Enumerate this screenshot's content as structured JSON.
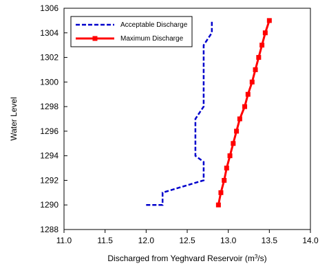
{
  "chart_data": {
    "type": "line",
    "title": "",
    "xlabel_main": "Discharged from Yeghvard Reservoir (m",
    "xlabel_sup": "3",
    "xlabel_tail": "/s)",
    "ylabel": "Water Level",
    "xlim": [
      11.0,
      14.0
    ],
    "ylim": [
      1288,
      1306
    ],
    "x_ticks": [
      "11.0",
      "11.5",
      "12.0",
      "12.5",
      "13.0",
      "13.5",
      "14.0"
    ],
    "y_ticks": [
      "1288",
      "1290",
      "1292",
      "1294",
      "1296",
      "1298",
      "1300",
      "1302",
      "1304",
      "1306"
    ],
    "grid": false,
    "legend_position": "top-left",
    "series": [
      {
        "name": "Acceptable Discharge",
        "color": "#0000CC",
        "style": "dashed",
        "points": [
          {
            "x": 12.0,
            "y": 1290.0
          },
          {
            "x": 12.2,
            "y": 1290.0
          },
          {
            "x": 12.2,
            "y": 1291.0
          },
          {
            "x": 12.7,
            "y": 1292.0
          },
          {
            "x": 12.7,
            "y": 1293.5
          },
          {
            "x": 12.6,
            "y": 1294.0
          },
          {
            "x": 12.6,
            "y": 1297.0
          },
          {
            "x": 12.7,
            "y": 1298.0
          },
          {
            "x": 12.7,
            "y": 1303.0
          },
          {
            "x": 12.8,
            "y": 1304.0
          },
          {
            "x": 12.8,
            "y": 1305.0
          }
        ]
      },
      {
        "name": "Maximum Discharge",
        "color": "#FF0000",
        "style": "solid-square",
        "points": [
          {
            "x": 12.88,
            "y": 1290.0
          },
          {
            "x": 12.91,
            "y": 1291.0
          },
          {
            "x": 12.95,
            "y": 1292.0
          },
          {
            "x": 12.98,
            "y": 1293.0
          },
          {
            "x": 13.02,
            "y": 1294.0
          },
          {
            "x": 13.06,
            "y": 1295.0
          },
          {
            "x": 13.1,
            "y": 1296.0
          },
          {
            "x": 13.14,
            "y": 1297.0
          },
          {
            "x": 13.2,
            "y": 1298.0
          },
          {
            "x": 13.24,
            "y": 1299.0
          },
          {
            "x": 13.29,
            "y": 1300.0
          },
          {
            "x": 13.33,
            "y": 1301.0
          },
          {
            "x": 13.37,
            "y": 1302.0
          },
          {
            "x": 13.41,
            "y": 1303.0
          },
          {
            "x": 13.45,
            "y": 1304.0
          },
          {
            "x": 13.5,
            "y": 1305.0
          }
        ]
      }
    ]
  }
}
